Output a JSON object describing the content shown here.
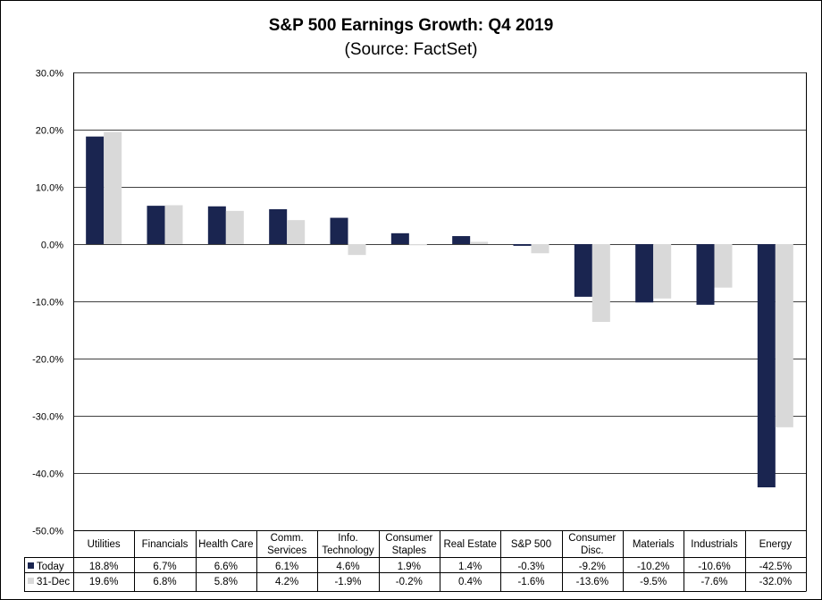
{
  "chart_data": {
    "type": "bar",
    "title": "S&P 500 Earnings Growth:  Q4 2019",
    "subtitle": "(Source: FactSet)",
    "categories": [
      [
        "Utilities"
      ],
      [
        "Financials"
      ],
      [
        "Health Care"
      ],
      [
        "Comm.",
        "Services"
      ],
      [
        "Info.",
        "Technology"
      ],
      [
        "Consumer",
        "Staples"
      ],
      [
        "Real Estate"
      ],
      [
        "S&P 500"
      ],
      [
        "Consumer",
        "Disc."
      ],
      [
        "Materials"
      ],
      [
        "Industrials"
      ],
      [
        "Energy"
      ]
    ],
    "series": [
      {
        "name": "Today",
        "color": "#1a2550",
        "values": [
          18.8,
          6.7,
          6.6,
          6.1,
          4.6,
          1.9,
          1.4,
          -0.3,
          -9.2,
          -10.2,
          -10.6,
          -42.5
        ],
        "labels": [
          "18.8%",
          "6.7%",
          "6.6%",
          "6.1%",
          "4.6%",
          "1.9%",
          "1.4%",
          "-0.3%",
          "-9.2%",
          "-10.2%",
          "-10.6%",
          "-42.5%"
        ]
      },
      {
        "name": "31-Dec",
        "color": "#d9d9d9",
        "values": [
          19.6,
          6.8,
          5.8,
          4.2,
          -1.9,
          -0.2,
          0.4,
          -1.6,
          -13.6,
          -9.5,
          -7.6,
          -32.0
        ],
        "labels": [
          "19.6%",
          "6.8%",
          "5.8%",
          "4.2%",
          "-1.9%",
          "-0.2%",
          "0.4%",
          "-1.6%",
          "-13.6%",
          "-9.5%",
          "-7.6%",
          "-32.0%"
        ]
      }
    ],
    "ylim": [
      -50,
      30
    ],
    "yticks": [
      30,
      20,
      10,
      0,
      -10,
      -20,
      -30,
      -40,
      -50
    ],
    "ytick_labels": [
      "30.0%",
      "20.0%",
      "10.0%",
      "0.0%",
      "-10.0%",
      "-20.0%",
      "-30.0%",
      "-40.0%",
      "-50.0%"
    ],
    "grid": true,
    "legend": "data-table"
  }
}
